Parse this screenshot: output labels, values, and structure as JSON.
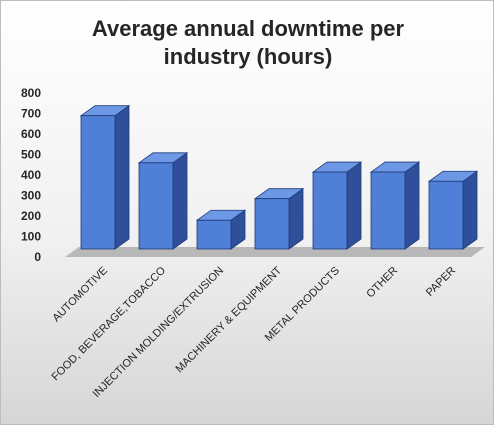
{
  "chart_data": {
    "type": "bar",
    "title_lines": [
      "Average annual downtime per",
      "industry (hours)"
    ],
    "categories": [
      "AUTOMOTIVE",
      "FOOD, BEVERAGE,TOBACCO",
      "INJECTION MOLDING/EXTRUSION",
      "MACHINERY & EQUIPMENT",
      "METAL PRODUCTS",
      "OTHER",
      "PAPER"
    ],
    "values": [
      665,
      435,
      155,
      260,
      390,
      390,
      345
    ],
    "ylim": [
      0,
      800
    ],
    "yticks": [
      0,
      100,
      200,
      300,
      400,
      500,
      600,
      700,
      800
    ],
    "xlabel": "",
    "ylabel": "",
    "grid": false,
    "legend": "none",
    "bar_style": "3d"
  },
  "colors": {
    "bar_front": "#4f7fd6",
    "bar_side": "#2f4f9a",
    "bar_top": "#6d98e6",
    "floor": "#b8b8b8",
    "text": "#262626"
  }
}
